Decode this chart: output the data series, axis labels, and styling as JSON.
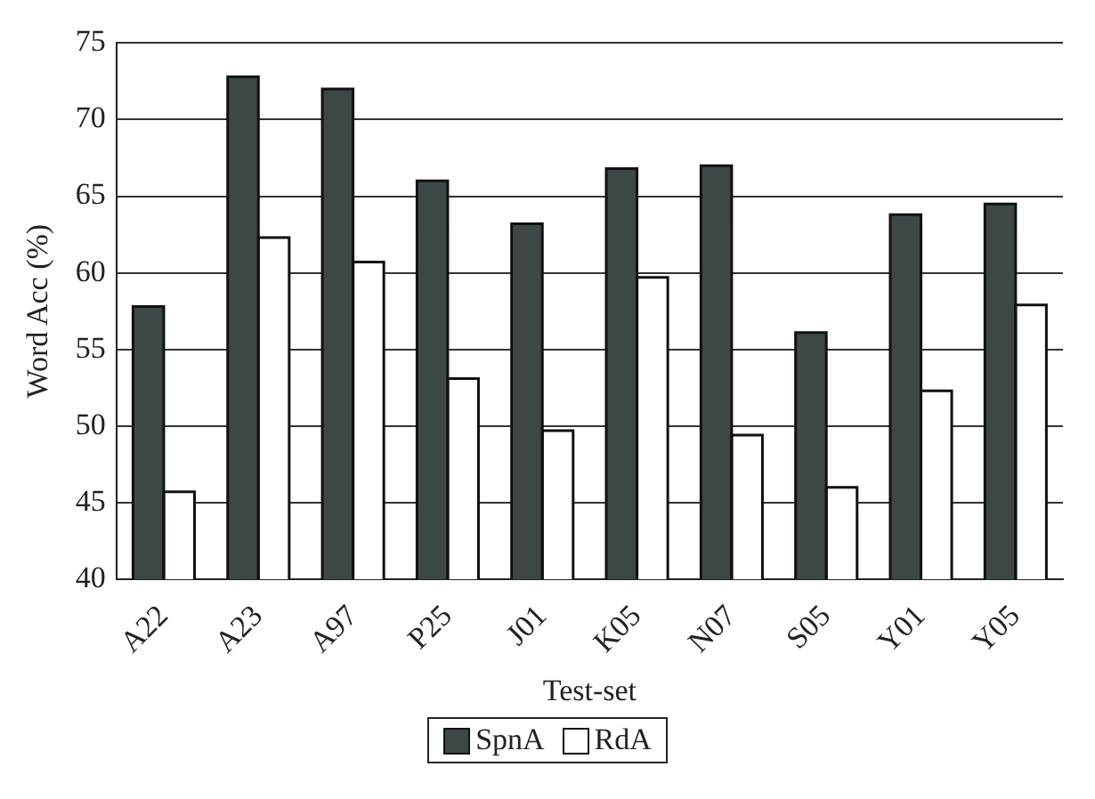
{
  "chart_data": {
    "type": "bar",
    "xlabel": "Test-set",
    "ylabel": "Word Acc (%)",
    "categories": [
      "A22",
      "A23",
      "A97",
      "P25",
      "J01",
      "K05",
      "N07",
      "S05",
      "Y01",
      "Y05"
    ],
    "series": [
      {
        "name": "SpnA",
        "color": "#3d4846",
        "values": [
          57.8,
          72.8,
          72,
          66,
          63.2,
          66.8,
          67,
          56.1,
          63.8,
          64.5
        ]
      },
      {
        "name": "RdA",
        "color": "#ffffff",
        "values": [
          45.7,
          62.3,
          60.7,
          53.1,
          49.7,
          59.7,
          49.4,
          46,
          52.3,
          57.9
        ]
      }
    ],
    "ylim": [
      40,
      75
    ],
    "yticks": [
      40,
      45,
      50,
      55,
      60,
      65,
      70,
      75
    ],
    "grid": "y",
    "legend": "bottom"
  }
}
